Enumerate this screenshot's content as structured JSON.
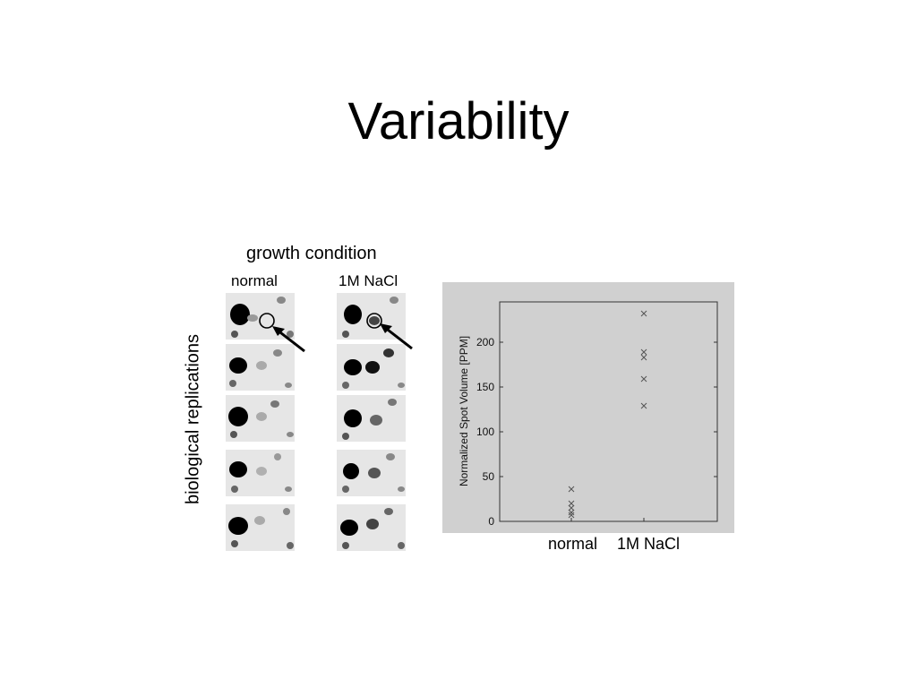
{
  "slide": {
    "title": "Variability"
  },
  "gel_panel": {
    "column_header": "growth condition",
    "columns": [
      "normal",
      "1M NaCl"
    ],
    "row_header": "biological replications",
    "replicates": 5
  },
  "chart_data": {
    "type": "scatter",
    "title": "",
    "xlabel": "",
    "ylabel": "Normalized Spot Volume [PPM]",
    "categories": [
      "normal",
      "1M NaCl"
    ],
    "ylim": [
      0,
      245
    ],
    "yticks": [
      0,
      50,
      100,
      150,
      200
    ],
    "grid": false,
    "marker": "x",
    "series": [
      {
        "category": "normal",
        "values": [
          36,
          20,
          15,
          10,
          7
        ]
      },
      {
        "category": "1M NaCl",
        "values": [
          232,
          189,
          183,
          159,
          129
        ]
      }
    ]
  },
  "colors": {
    "chart_background": "#d0d0d0",
    "plot_background": "#d0d0d0",
    "marker": "#555555",
    "gel_background": "#e6e6e6",
    "gel_spot": "#000000"
  }
}
